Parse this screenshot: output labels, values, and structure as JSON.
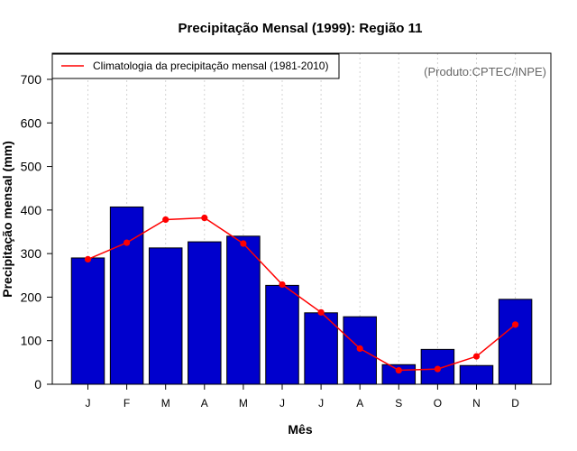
{
  "chart_data": {
    "type": "bar",
    "title": "Precipitação Mensal (1999): Região 11",
    "xlabel": "Mês",
    "ylabel": "Precipitação mensal (mm)",
    "ylim": [
      0,
      760
    ],
    "yticks": [
      0,
      100,
      200,
      300,
      400,
      500,
      600,
      700
    ],
    "categories": [
      "J",
      "F",
      "M",
      "A",
      "M",
      "J",
      "J",
      "A",
      "S",
      "O",
      "N",
      "D"
    ],
    "series": [
      {
        "name": "Precipitação mensal (1999)",
        "type": "bar",
        "color": "#0000cd",
        "values": [
          290,
          407,
          313,
          327,
          340,
          227,
          164,
          155,
          45,
          80,
          43,
          195
        ]
      },
      {
        "name": "Climatologia da precipitação mensal (1981-2010)",
        "type": "line",
        "color": "#ff0000",
        "values": [
          287,
          325,
          378,
          382,
          323,
          229,
          165,
          82,
          32,
          35,
          64,
          137
        ]
      }
    ],
    "legend": {
      "position": "top-left",
      "entries": [
        "Climatologia da precipitação mensal (1981-2010)"
      ]
    },
    "annotation": "(Produto:CPTEC/INPE)",
    "grid": "vertical-dotted"
  }
}
